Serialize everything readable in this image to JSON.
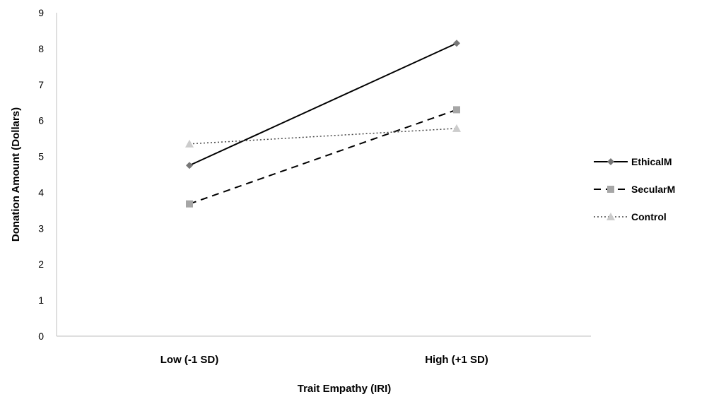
{
  "chart_data": {
    "type": "line",
    "title": "",
    "xlabel": "Trait Empathy (IRI)",
    "ylabel": "Donation Amount (Dollars)",
    "categories": [
      "Low (-1 SD)",
      "High (+1 SD)"
    ],
    "ylim": [
      0,
      9
    ],
    "yticks": [
      "0",
      "1",
      "2",
      "3",
      "4",
      "5",
      "6",
      "7",
      "8",
      "9"
    ],
    "grid": false,
    "legend_position": "right",
    "series": [
      {
        "name": "EthicalM",
        "values": [
          4.75,
          8.15
        ],
        "color": "#000000",
        "marker": "diamond",
        "marker_color": "#777777",
        "line": "solid"
      },
      {
        "name": "SecularM",
        "values": [
          3.68,
          6.3
        ],
        "color": "#000000",
        "marker": "square",
        "marker_color": "#a6a6a6",
        "line": "dashed"
      },
      {
        "name": "Control",
        "values": [
          5.35,
          5.78
        ],
        "color": "#444444",
        "marker": "triangle",
        "marker_color": "#cccccc",
        "line": "dotted"
      }
    ]
  }
}
